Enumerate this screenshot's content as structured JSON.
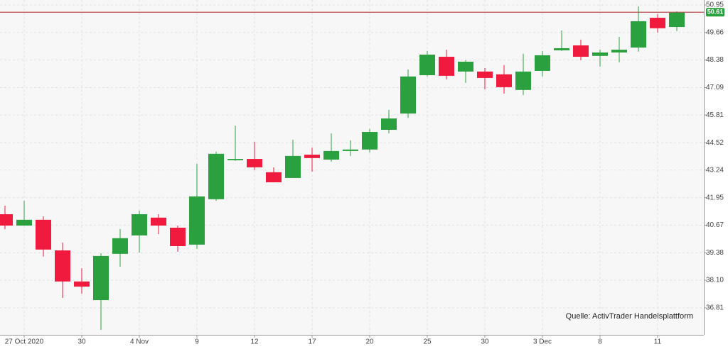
{
  "chart_data": {
    "type": "candlestick",
    "categories": [
      null,
      "27 Oct 2020",
      null,
      null,
      "30",
      null,
      null,
      "4 Nov",
      null,
      null,
      "9",
      null,
      null,
      "12",
      null,
      null,
      "17",
      null,
      null,
      "20",
      null,
      null,
      "25",
      null,
      null,
      "30",
      null,
      null,
      "3 Dec",
      null,
      null,
      "8",
      null,
      null,
      "11",
      null
    ],
    "series": [
      {
        "up_color": "#2ba03f",
        "down_color": "#ef1a3d",
        "open": [
          41.18,
          40.65,
          40.92,
          39.49,
          38.04,
          37.17,
          39.33,
          40.19,
          41.02,
          40.55,
          39.76,
          41.88,
          43.7,
          43.76,
          43.14,
          42.87,
          43.96,
          43.73,
          44.13,
          44.2,
          45.12,
          45.88,
          47.67,
          48.53,
          47.84,
          47.84,
          47.71,
          46.98,
          47.87,
          48.83,
          49.06,
          48.57,
          48.73,
          48.96,
          50.35,
          49.92
        ],
        "high": [
          41.58,
          41.81,
          41.08,
          39.86,
          38.66,
          39.36,
          40.49,
          41.35,
          41.18,
          40.65,
          43.53,
          44.1,
          45.32,
          44.56,
          43.37,
          44.66,
          44.29,
          44.96,
          44.63,
          45.16,
          46.05,
          47.94,
          48.8,
          48.86,
          48.37,
          48.0,
          48.14,
          48.67,
          48.8,
          49.76,
          49.33,
          48.86,
          49.46,
          50.88,
          50.52,
          50.65
        ],
        "low": [
          40.48,
          40.65,
          39.2,
          37.27,
          37.47,
          35.78,
          38.73,
          39.39,
          40.25,
          39.43,
          39.56,
          41.81,
          43.67,
          43.24,
          42.67,
          42.87,
          43.17,
          43.63,
          43.9,
          44.06,
          44.96,
          45.68,
          47.61,
          47.47,
          47.31,
          47.01,
          46.81,
          46.74,
          47.61,
          48.8,
          48.37,
          48.07,
          48.27,
          48.77,
          49.66,
          49.73
        ],
        "close": [
          40.65,
          40.92,
          39.53,
          38.04,
          37.8,
          39.23,
          40.06,
          41.18,
          40.65,
          39.69,
          42.01,
          44.0,
          43.76,
          43.37,
          42.67,
          43.9,
          43.8,
          44.13,
          44.2,
          45.02,
          45.65,
          47.61,
          48.63,
          47.64,
          48.3,
          47.54,
          47.11,
          47.84,
          48.6,
          48.93,
          48.53,
          48.73,
          48.86,
          50.19,
          49.86,
          50.59
        ]
      }
    ],
    "ylim": [
      35.55,
      51.18
    ],
    "yticks": [
      36.81,
      {
        "value": 38.1,
        "label": "38.10"
      },
      39.38,
      40.67,
      41.95,
      43.24,
      44.52,
      45.81,
      47.09,
      48.38,
      49.66,
      50.95
    ],
    "grid": true,
    "last_price": 50.61,
    "last_price_color": "#b84a4a",
    "annotation": "Quelle: ActivTrader Handelsplattform"
  }
}
